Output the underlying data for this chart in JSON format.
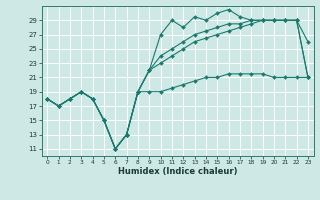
{
  "xlabel": "Humidex (Indice chaleur)",
  "background_color": "#cde8e5",
  "grid_color": "#b0d8d4",
  "line_color": "#1a7a6e",
  "xlim": [
    -0.5,
    23.5
  ],
  "ylim": [
    10,
    31
  ],
  "yticks": [
    11,
    13,
    15,
    17,
    19,
    21,
    23,
    25,
    27,
    29
  ],
  "xticks": [
    0,
    1,
    2,
    3,
    4,
    5,
    6,
    7,
    8,
    9,
    10,
    11,
    12,
    13,
    14,
    15,
    16,
    17,
    18,
    19,
    20,
    21,
    22,
    23
  ],
  "series": [
    {
      "x": [
        0,
        1,
        2,
        3,
        4,
        5,
        6,
        7,
        8,
        9,
        10,
        11,
        12,
        13,
        14,
        15,
        16,
        17,
        18,
        19,
        20,
        21,
        22,
        23
      ],
      "y": [
        18,
        17,
        18,
        19,
        18,
        15,
        11,
        13,
        19,
        22,
        27,
        29,
        28,
        29.5,
        29,
        30,
        30.5,
        29.5,
        29,
        29,
        29,
        29,
        29,
        26
      ],
      "marker": "D",
      "markersize": 2.0,
      "linewidth": 0.8
    },
    {
      "x": [
        0,
        1,
        2,
        3,
        4,
        5,
        6,
        7,
        8,
        9,
        10,
        11,
        12,
        13,
        14,
        15,
        16,
        17,
        18,
        19,
        20,
        21,
        22,
        23
      ],
      "y": [
        18,
        17,
        18,
        19,
        18,
        15,
        11,
        13,
        19,
        22,
        24,
        25,
        26,
        27,
        27.5,
        28,
        28.5,
        28.5,
        29,
        29,
        29,
        29,
        29,
        21
      ],
      "marker": "D",
      "markersize": 2.0,
      "linewidth": 0.8
    },
    {
      "x": [
        0,
        1,
        2,
        3,
        4,
        5,
        6,
        7,
        8,
        9,
        10,
        11,
        12,
        13,
        14,
        15,
        16,
        17,
        18,
        19,
        20,
        21,
        22,
        23
      ],
      "y": [
        18,
        17,
        18,
        19,
        18,
        15,
        11,
        13,
        19,
        22,
        23,
        24,
        25,
        26,
        26.5,
        27,
        27.5,
        28,
        28.5,
        29,
        29,
        29,
        29,
        21
      ],
      "marker": "D",
      "markersize": 2.0,
      "linewidth": 0.8
    },
    {
      "x": [
        0,
        1,
        2,
        3,
        4,
        5,
        6,
        7,
        8,
        9,
        10,
        11,
        12,
        13,
        14,
        15,
        16,
        17,
        18,
        19,
        20,
        21,
        22,
        23
      ],
      "y": [
        18,
        17,
        18,
        19,
        18,
        15,
        11,
        13,
        19,
        19,
        19,
        19.5,
        20,
        20.5,
        21,
        21,
        21.5,
        21.5,
        21.5,
        21.5,
        21,
        21,
        21,
        21
      ],
      "marker": "D",
      "markersize": 2.0,
      "linewidth": 0.8
    }
  ]
}
